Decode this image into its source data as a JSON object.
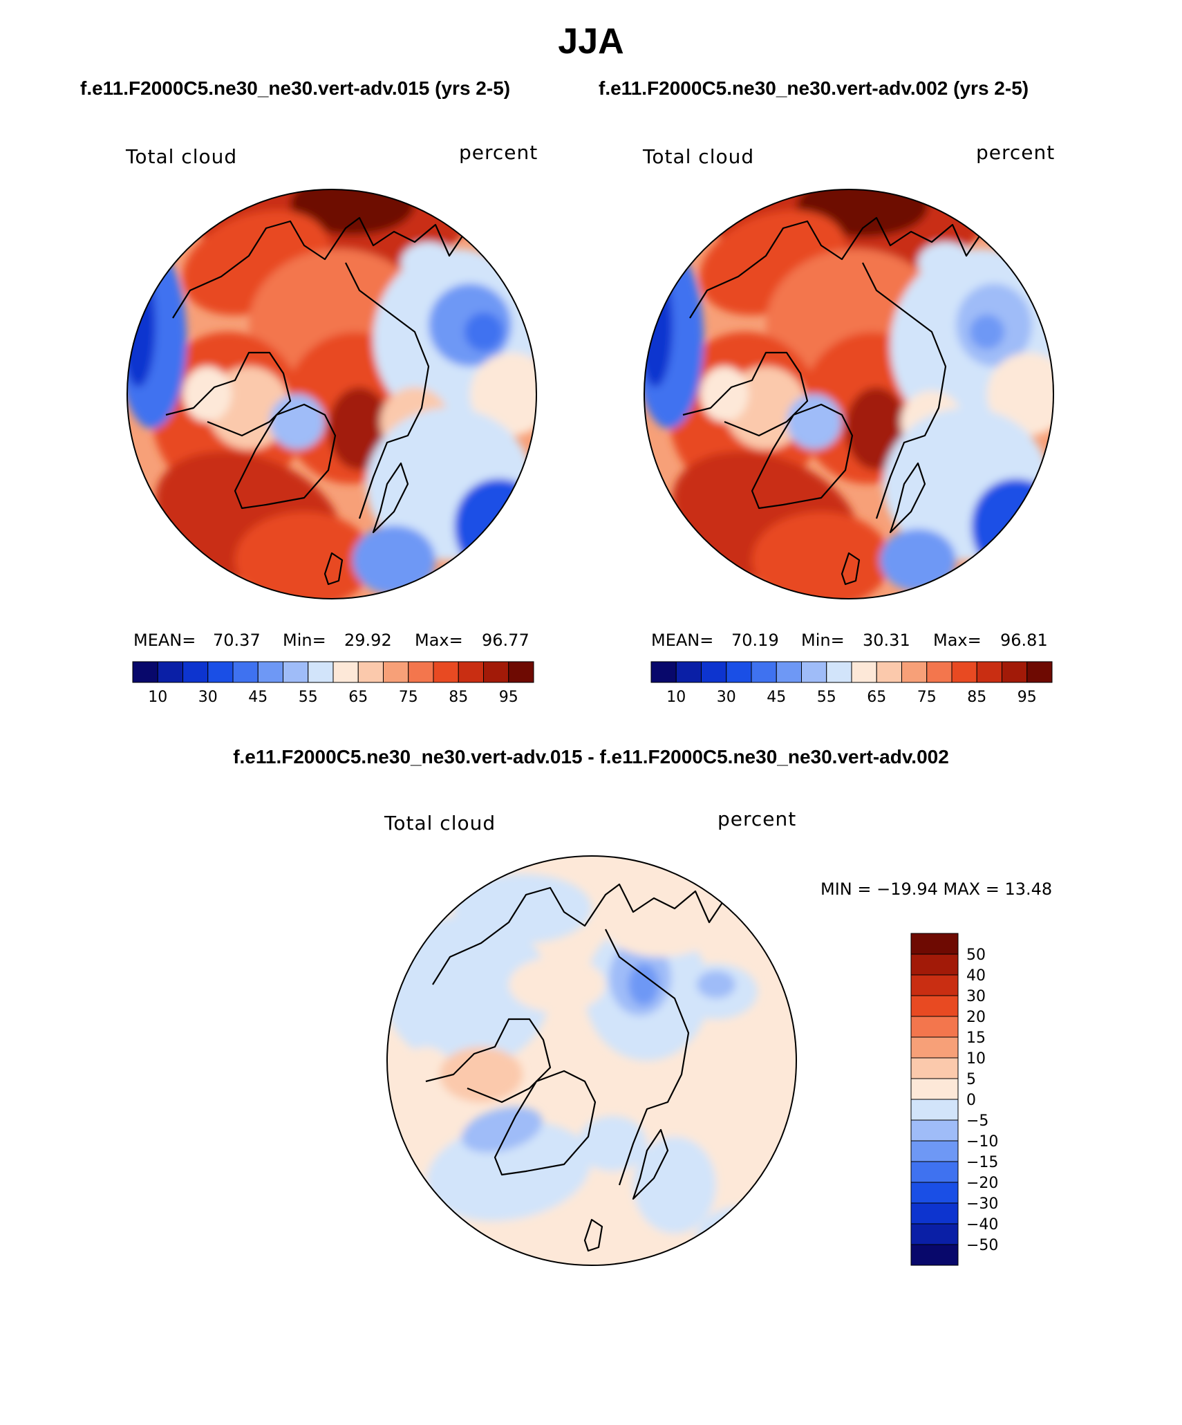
{
  "page": {
    "title": "JJA",
    "subtitle_left": "f.e11.F2000C5.ne30_ne30.vert-adv.015 (yrs 2-5)",
    "subtitle_right": "f.e11.F2000C5.ne30_ne30.vert-adv.002 (yrs 2-5)",
    "diff_title": "f.e11.F2000C5.ne30_ne30.vert-adv.015 - f.e11.F2000C5.ne30_ne30.vert-adv.002"
  },
  "chart_data": [
    {
      "type": "heatmap",
      "projection": "north-polar-stereographic",
      "variable": "Total cloud",
      "units": "percent",
      "stats": {
        "mean_label": "MEAN=",
        "mean": "70.37",
        "min_label": "Min=",
        "min": "29.92",
        "max_label": "Max=",
        "max": "96.77"
      },
      "colorbar": {
        "orientation": "horizontal",
        "levels": [
          10,
          20,
          30,
          40,
          45,
          50,
          55,
          60,
          65,
          70,
          75,
          80,
          85,
          90,
          95
        ],
        "tick_labels": [
          "10",
          "30",
          "45",
          "55",
          "65",
          "75",
          "85",
          "95"
        ]
      }
    },
    {
      "type": "heatmap",
      "projection": "north-polar-stereographic",
      "variable": "Total cloud",
      "units": "percent",
      "stats": {
        "mean_label": "MEAN=",
        "mean": "70.19",
        "min_label": "Min=",
        "min": "30.31",
        "max_label": "Max=",
        "max": "96.81"
      },
      "colorbar": {
        "orientation": "horizontal",
        "levels": [
          10,
          20,
          30,
          40,
          45,
          50,
          55,
          60,
          65,
          70,
          75,
          80,
          85,
          90,
          95
        ],
        "tick_labels": [
          "10",
          "30",
          "45",
          "55",
          "65",
          "75",
          "85",
          "95"
        ]
      }
    },
    {
      "type": "heatmap",
      "projection": "north-polar-stereographic",
      "variable": "Total cloud",
      "units": "percent",
      "stats_text": "MIN = −19.94 MAX =   13.48",
      "colorbar": {
        "orientation": "vertical",
        "levels": [
          50,
          40,
          30,
          20,
          15,
          10,
          5,
          0,
          -5,
          -10,
          -15,
          -20,
          -30,
          -40,
          -50
        ],
        "tick_labels": [
          "50",
          "40",
          "30",
          "20",
          "15",
          "10",
          "5",
          "0",
          "−5",
          "−10",
          "−15",
          "−20",
          "−30",
          "−40",
          "−50"
        ]
      }
    }
  ],
  "palette": {
    "abs": [
      "#08086b",
      "#0a1fa6",
      "#0d34cf",
      "#1a4fe6",
      "#3f72f0",
      "#6e98f5",
      "#9fbcf8",
      "#d2e4fa",
      "#fde8d8",
      "#fbc9ac",
      "#f7a078",
      "#f3764d",
      "#e84a22",
      "#c92e12",
      "#a21a08",
      "#6e0a02"
    ],
    "diff": [
      "#6e0a02",
      "#a21a08",
      "#c92e12",
      "#e84a22",
      "#f3764d",
      "#f7a078",
      "#fbc9ac",
      "#fde8d8",
      "#d2e4fa",
      "#9fbcf8",
      "#6e98f5",
      "#3f72f0",
      "#1a4fe6",
      "#0d34cf",
      "#0a1fa6",
      "#08086b"
    ]
  }
}
